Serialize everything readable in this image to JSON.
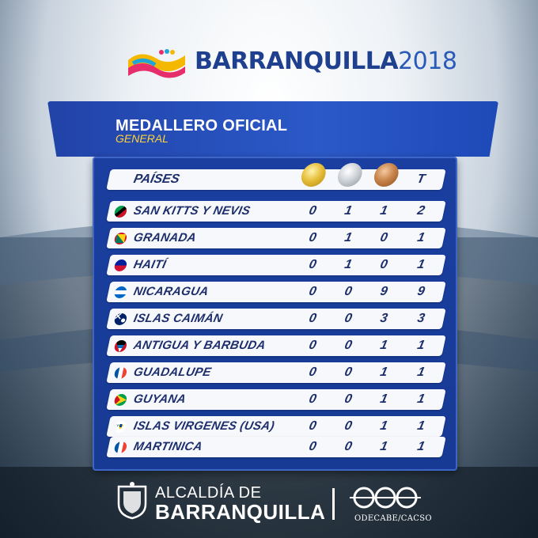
{
  "header": {
    "brand_name": "BARRANQUILLA",
    "brand_year": "2018"
  },
  "banner": {
    "title": "MEDALLERO OFICIAL",
    "subtitle": "GENERAL"
  },
  "table": {
    "country_header": "PAÍSES",
    "total_header": "T",
    "rows": [
      {
        "country": "SAN KITTS Y NEVIS",
        "gold": "0",
        "silver": "1",
        "bronze": "1",
        "total": "2"
      },
      {
        "country": "GRANADA",
        "gold": "0",
        "silver": "1",
        "bronze": "0",
        "total": "1"
      },
      {
        "country": "HAITÍ",
        "gold": "0",
        "silver": "1",
        "bronze": "0",
        "total": "1"
      },
      {
        "country": "NICARAGUA",
        "gold": "0",
        "silver": "0",
        "bronze": "9",
        "total": "9"
      },
      {
        "country": "ISLAS CAIMÁN",
        "gold": "0",
        "silver": "0",
        "bronze": "3",
        "total": "3"
      },
      {
        "country": "ANTIGUA Y BARBUDA",
        "gold": "0",
        "silver": "0",
        "bronze": "1",
        "total": "1"
      },
      {
        "country": "GUADALUPE",
        "gold": "0",
        "silver": "0",
        "bronze": "1",
        "total": "1"
      },
      {
        "country": "GUYANA",
        "gold": "0",
        "silver": "0",
        "bronze": "1",
        "total": "1"
      },
      {
        "country": "ISLAS VIRGENES (USA)",
        "gold": "0",
        "silver": "0",
        "bronze": "1",
        "total": "1"
      },
      {
        "country": "MARTINICA",
        "gold": "0",
        "silver": "0",
        "bronze": "1",
        "total": "1"
      }
    ]
  },
  "footer": {
    "line1": "ALCALDÍA DE",
    "line2": "BARRANQUILLA",
    "org": "ODECABE/CACSO"
  },
  "colors": {
    "primary_blue": "#1f3f8f",
    "banner_blue": "#2b59c8",
    "subtitle_yellow": "#ffd23a"
  },
  "icons": {
    "gold": "gold-medal-icon",
    "silver": "silver-medal-icon",
    "bronze": "bronze-medal-icon"
  }
}
